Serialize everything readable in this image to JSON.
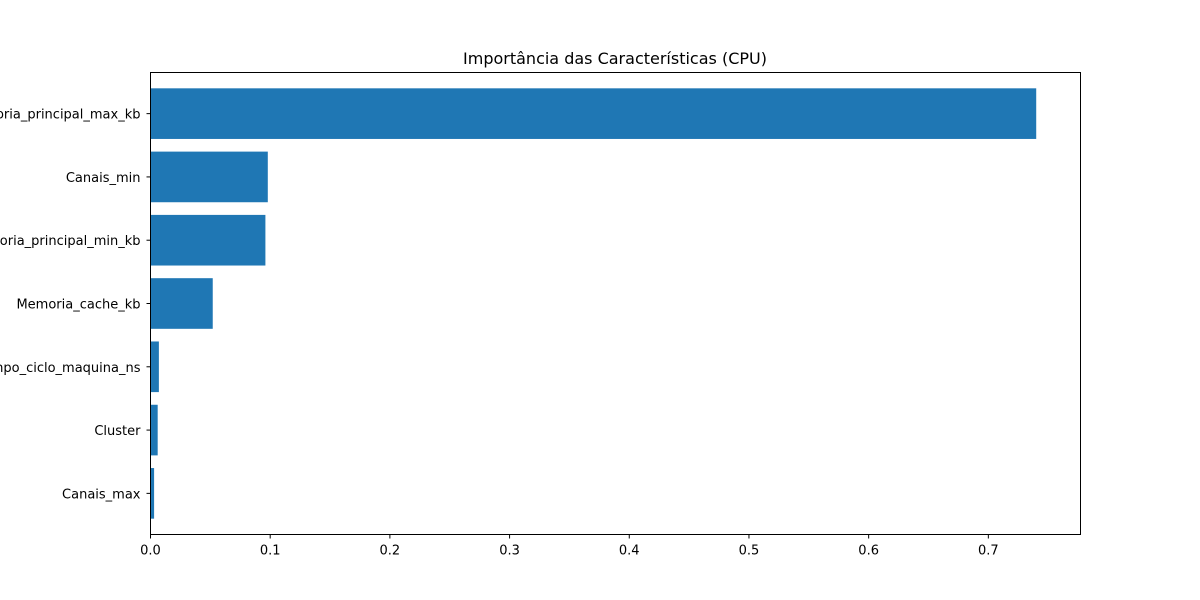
{
  "chart_data": {
    "type": "bar",
    "orientation": "horizontal",
    "title": "Importância das Características (CPU)",
    "xlabel": "",
    "ylabel": "",
    "categories": [
      "Memoria_principal_max_kb",
      "Canais_min",
      "Memoria_principal_min_kb",
      "Memoria_cache_kb",
      "Tempo_ciclo_maquina_ns",
      "Cluster",
      "Canais_max"
    ],
    "values": [
      0.74,
      0.098,
      0.096,
      0.052,
      0.007,
      0.006,
      0.003
    ],
    "xlim": [
      0,
      0.777
    ],
    "xticks": [
      0.0,
      0.1,
      0.2,
      0.3,
      0.4,
      0.5,
      0.6,
      0.7
    ],
    "xtick_labels": [
      "0.0",
      "0.1",
      "0.2",
      "0.3",
      "0.4",
      "0.5",
      "0.6",
      "0.7"
    ],
    "grid": false,
    "legend": "none",
    "bar_color": "#1f77b4"
  }
}
